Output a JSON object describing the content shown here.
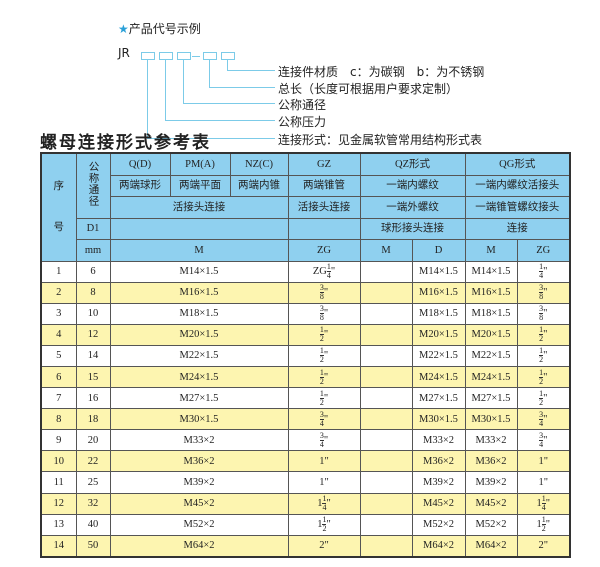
{
  "code_example": {
    "star_icon": "star",
    "title": "产品代号示例",
    "prefix": "JR",
    "labels": [
      "连接件材质　c：为碳钢　b：为不锈钢",
      "总长（长度可根据用户要求定制）",
      "公称通径",
      "公称压力",
      "连接形式：见金属软管常用结构形式表"
    ]
  },
  "table_title": "螺母连接形式参考表",
  "colors": {
    "header": "#8fd0ef",
    "row_alt": "#fdf5b0",
    "connector": "#7ccbe8"
  },
  "header": {
    "seq1": "序",
    "seq2": "号",
    "dn": "公称通径",
    "r1": [
      "Q(D)",
      "PM(A)",
      "NZ(C)",
      "GZ",
      "QZ形式",
      "QG形式"
    ],
    "r2": [
      "两端球形",
      "两端平面",
      "两端内锥",
      "两端锥管",
      "一端内螺纹",
      "一端内螺纹活接头"
    ],
    "r3": [
      "活接头连接",
      "活接头连接",
      "一端外螺纹",
      "一端锥管螺纹接头"
    ],
    "r4": [
      "D1",
      "",
      "",
      "球形接头连接",
      "连接"
    ],
    "r5": [
      "mm",
      "M",
      "ZG",
      "M",
      "D",
      "M",
      "ZG"
    ]
  },
  "rows": [
    {
      "n": "1",
      "d": "6",
      "m": "M14×1.5",
      "gz": {
        "pre": "ZG",
        "w": "",
        "num": "1",
        "den": "4"
      },
      "qzm": "",
      "qzd": "M14×1.5",
      "qgm": "M14×1.5",
      "qg": {
        "w": "",
        "num": "1",
        "den": "4"
      }
    },
    {
      "n": "2",
      "d": "8",
      "m": "M16×1.5",
      "gz": {
        "w": "",
        "num": "3",
        "den": "8"
      },
      "qzm": "",
      "qzd": "M16×1.5",
      "qgm": "M16×1.5",
      "qg": {
        "w": "",
        "num": "3",
        "den": "8"
      }
    },
    {
      "n": "3",
      "d": "10",
      "m": "M18×1.5",
      "gz": {
        "w": "",
        "num": "3",
        "den": "8"
      },
      "qzm": "",
      "qzd": "M18×1.5",
      "qgm": "M18×1.5",
      "qg": {
        "w": "",
        "num": "3",
        "den": "8"
      }
    },
    {
      "n": "4",
      "d": "12",
      "m": "M20×1.5",
      "gz": {
        "w": "",
        "num": "1",
        "den": "2"
      },
      "qzm": "",
      "qzd": "M20×1.5",
      "qgm": "M20×1.5",
      "qg": {
        "w": "",
        "num": "1",
        "den": "2"
      }
    },
    {
      "n": "5",
      "d": "14",
      "m": "M22×1.5",
      "gz": {
        "w": "",
        "num": "1",
        "den": "2"
      },
      "qzm": "",
      "qzd": "M22×1.5",
      "qgm": "M22×1.5",
      "qg": {
        "w": "",
        "num": "1",
        "den": "2"
      }
    },
    {
      "n": "6",
      "d": "15",
      "m": "M24×1.5",
      "gz": {
        "w": "",
        "num": "1",
        "den": "2"
      },
      "qzm": "",
      "qzd": "M24×1.5",
      "qgm": "M24×1.5",
      "qg": {
        "w": "",
        "num": "1",
        "den": "2"
      }
    },
    {
      "n": "7",
      "d": "16",
      "m": "M27×1.5",
      "gz": {
        "w": "",
        "num": "1",
        "den": "2"
      },
      "qzm": "",
      "qzd": "M27×1.5",
      "qgm": "M27×1.5",
      "qg": {
        "w": "",
        "num": "1",
        "den": "2"
      }
    },
    {
      "n": "8",
      "d": "18",
      "m": "M30×1.5",
      "gz": {
        "w": "",
        "num": "3",
        "den": "4"
      },
      "qzm": "",
      "qzd": "M30×1.5",
      "qgm": "M30×1.5",
      "qg": {
        "w": "",
        "num": "3",
        "den": "4"
      }
    },
    {
      "n": "9",
      "d": "20",
      "m": "M33×2",
      "gz": {
        "w": "",
        "num": "3",
        "den": "4"
      },
      "qzm": "",
      "qzd": "M33×2",
      "qgm": "M33×2",
      "qg": {
        "w": "",
        "num": "3",
        "den": "4"
      }
    },
    {
      "n": "10",
      "d": "22",
      "m": "M36×2",
      "gz": {
        "w": "1"
      },
      "qzm": "",
      "qzd": "M36×2",
      "qgm": "M36×2",
      "qg": {
        "w": "1"
      }
    },
    {
      "n": "11",
      "d": "25",
      "m": "M39×2",
      "gz": {
        "w": "1"
      },
      "qzm": "",
      "qzd": "M39×2",
      "qgm": "M39×2",
      "qg": {
        "w": "1"
      }
    },
    {
      "n": "12",
      "d": "32",
      "m": "M45×2",
      "gz": {
        "w": "1",
        "num": "1",
        "den": "4"
      },
      "qzm": "",
      "qzd": "M45×2",
      "qgm": "M45×2",
      "qg": {
        "w": "1",
        "num": "1",
        "den": "4"
      }
    },
    {
      "n": "13",
      "d": "40",
      "m": "M52×2",
      "gz": {
        "w": "1",
        "num": "1",
        "den": "2"
      },
      "qzm": "",
      "qzd": "M52×2",
      "qgm": "M52×2",
      "qg": {
        "w": "1",
        "num": "1",
        "den": "2"
      }
    },
    {
      "n": "14",
      "d": "50",
      "m": "M64×2",
      "gz": {
        "w": "2"
      },
      "qzm": "",
      "qzd": "M64×2",
      "qgm": "M64×2",
      "qg": {
        "w": "2"
      }
    }
  ]
}
